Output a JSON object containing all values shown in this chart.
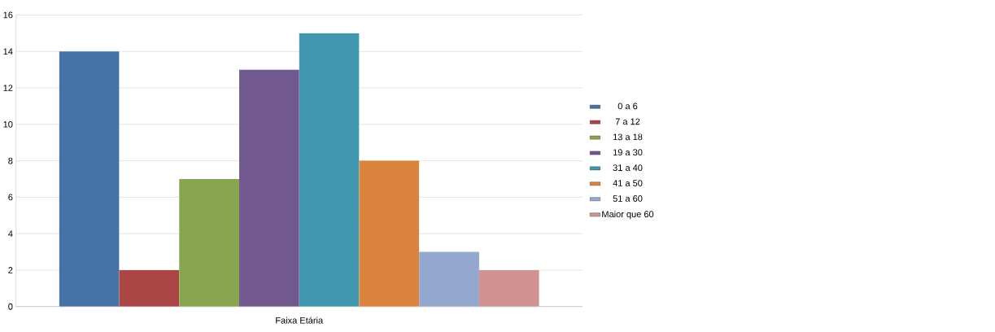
{
  "chart_data": {
    "type": "bar",
    "categories": [
      "Faixa Etária"
    ],
    "series": [
      {
        "name": "0 a 6",
        "color": "#4572a7",
        "values": [
          14
        ]
      },
      {
        "name": "7 a 12",
        "color": "#aa4643",
        "values": [
          2
        ]
      },
      {
        "name": "13 a 18",
        "color": "#89a54e",
        "values": [
          7
        ]
      },
      {
        "name": "19 a 30",
        "color": "#71588f",
        "values": [
          13
        ]
      },
      {
        "name": "31 a 40",
        "color": "#4198af",
        "values": [
          15
        ]
      },
      {
        "name": "41 a 50",
        "color": "#db843d",
        "values": [
          8
        ]
      },
      {
        "name": "51 a 60",
        "color": "#93a9cf",
        "values": [
          3
        ]
      },
      {
        "name": "Maior que 60",
        "color": "#d19392",
        "values": [
          2
        ]
      }
    ],
    "ylim": [
      0,
      16
    ],
    "yticks": [
      0,
      2,
      4,
      6,
      8,
      10,
      12,
      14,
      16
    ],
    "grid": "y",
    "legend": "right"
  }
}
